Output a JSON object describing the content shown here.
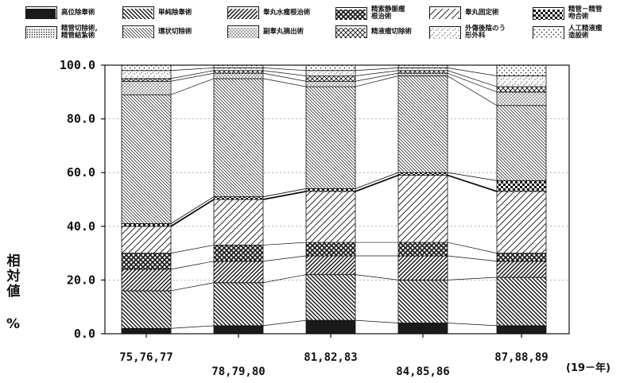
{
  "colors": {
    "ink": "#111111",
    "paper": "#ffffff",
    "grid": "#9a9a9a"
  },
  "legend": [
    {
      "label": "高位除睾術",
      "pattern": "solid"
    },
    {
      "label": "単純除睾術",
      "pattern": "back"
    },
    {
      "label": "睾丸水瘤根治術",
      "pattern": "fwd"
    },
    {
      "label": "精索静脈瘤\n根治術",
      "pattern": "cross"
    },
    {
      "label": "睾丸固定術",
      "pattern": "fwd-wide"
    },
    {
      "label": "精管－精管\n吻合術",
      "pattern": "checker"
    },
    {
      "label": "精管切除術,\n精管結紮術",
      "pattern": "dots-dense"
    },
    {
      "label": "環状切除術",
      "pattern": "back-fine"
    },
    {
      "label": "副睾丸摘出術",
      "pattern": "dots"
    },
    {
      "label": "精液瘤切除術",
      "pattern": "xdots"
    },
    {
      "label": "外傷後陰のう\n形外科",
      "pattern": "speck"
    },
    {
      "label": "人工精液瘤\n造設術",
      "pattern": "dots-sparse"
    }
  ],
  "y_axis": {
    "label_vertical": "相対値",
    "unit": "%",
    "ticks": [
      "0.0",
      "20.0",
      "40.0",
      "60.0",
      "80.0",
      "100.0"
    ]
  },
  "x_unit": "(19－年)",
  "chart_data": {
    "type": "bar",
    "stacked": true,
    "categories": [
      "75,76,77",
      "78,79,80",
      "81,82,83",
      "84,85,86",
      "87,88,89"
    ],
    "ylim": [
      0,
      100
    ],
    "grid": true,
    "series": [
      {
        "name": "高位除睾術",
        "values": [
          2,
          3,
          5,
          4,
          3
        ]
      },
      {
        "name": "単純除睾術",
        "values": [
          14,
          16,
          17,
          16,
          18
        ]
      },
      {
        "name": "睾丸水瘤根治術",
        "values": [
          8,
          8,
          7,
          9,
          6
        ]
      },
      {
        "name": "精索静脈瘤根治術",
        "values": [
          6,
          6,
          5,
          5,
          3
        ]
      },
      {
        "name": "睾丸固定術",
        "values": [
          10,
          17,
          19,
          25,
          23
        ]
      },
      {
        "name": "精管－精管吻合術",
        "values": [
          1,
          1,
          1,
          1,
          4
        ]
      },
      {
        "name": "精管切除術,精管結紮術",
        "values": [
          0,
          0,
          0,
          0,
          0
        ]
      },
      {
        "name": "環状切除術",
        "values": [
          48,
          44,
          38,
          36,
          28
        ]
      },
      {
        "name": "副睾丸摘出術",
        "values": [
          5,
          2,
          2,
          1,
          5
        ]
      },
      {
        "name": "精液瘤切除術",
        "values": [
          1,
          1,
          2,
          1,
          2
        ]
      },
      {
        "name": "外傷後陰のう形外科",
        "values": [
          3,
          1,
          2,
          1,
          4
        ]
      },
      {
        "name": "人工精液瘤造設術",
        "values": [
          2,
          1,
          2,
          1,
          4
        ]
      }
    ]
  }
}
